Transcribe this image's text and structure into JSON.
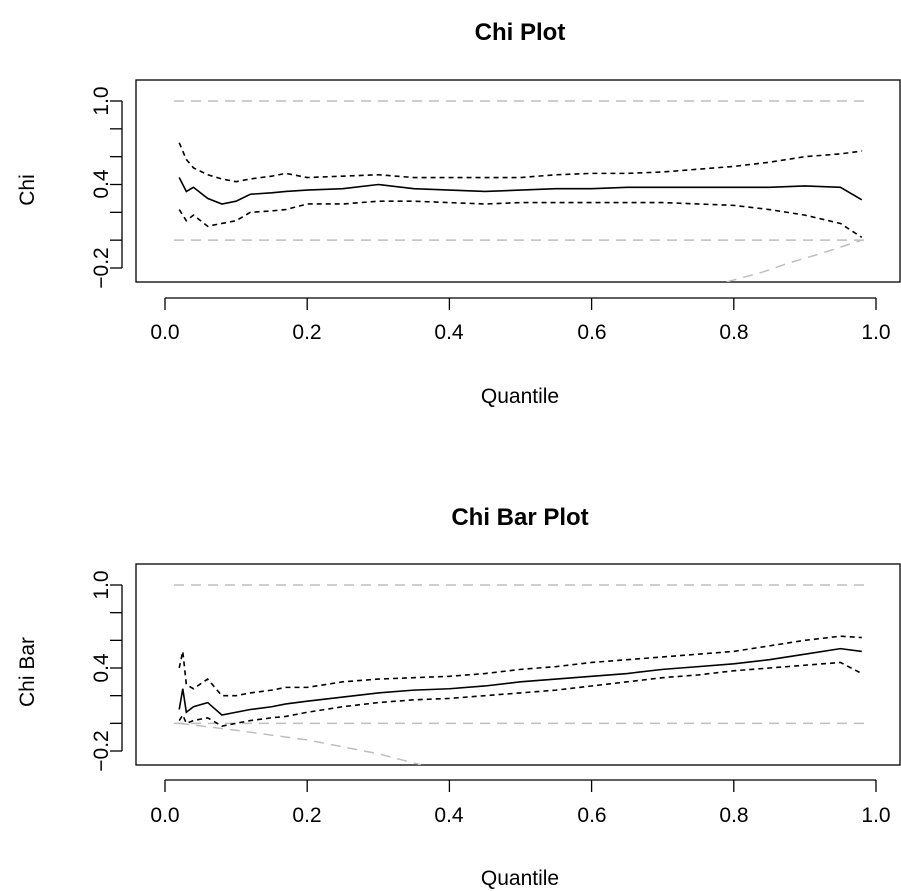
{
  "chart_data": [
    {
      "type": "line",
      "title": "Chi Plot",
      "xlabel": "Quantile",
      "ylabel": "Chi",
      "xlim": [
        0.0,
        1.0
      ],
      "ylim": [
        -0.2,
        1.0
      ],
      "x_ticks": [
        0.0,
        0.2,
        0.4,
        0.6,
        0.8,
        1.0
      ],
      "x_tick_labels": [
        "0.0",
        "0.2",
        "0.4",
        "0.6",
        "0.8",
        "1.0"
      ],
      "y_ticks": [
        -0.2,
        0.4,
        1.0
      ],
      "y_tick_labels": [
        "−0.2",
        "0.4",
        "1.0"
      ],
      "y_minor_ticks": [
        -0.2,
        0.0,
        0.2,
        0.4,
        0.6,
        0.8,
        1.0
      ],
      "grid": false,
      "legend": "none",
      "colors": {
        "estimate": "#000000",
        "bounds": "#000000",
        "reference": "#bebebe"
      },
      "x": [
        0.02,
        0.03,
        0.04,
        0.06,
        0.08,
        0.1,
        0.12,
        0.15,
        0.17,
        0.2,
        0.25,
        0.3,
        0.35,
        0.4,
        0.45,
        0.5,
        0.55,
        0.6,
        0.65,
        0.7,
        0.75,
        0.8,
        0.85,
        0.9,
        0.95,
        0.98
      ],
      "series": [
        {
          "role": "estimate",
          "style": "solid",
          "values": [
            0.45,
            0.35,
            0.38,
            0.3,
            0.26,
            0.28,
            0.33,
            0.34,
            0.35,
            0.36,
            0.37,
            0.4,
            0.37,
            0.36,
            0.35,
            0.36,
            0.37,
            0.37,
            0.38,
            0.38,
            0.38,
            0.38,
            0.38,
            0.39,
            0.38,
            0.29
          ]
        },
        {
          "role": "upper",
          "style": "dashed",
          "values": [
            0.7,
            0.58,
            0.52,
            0.47,
            0.44,
            0.42,
            0.44,
            0.46,
            0.48,
            0.45,
            0.46,
            0.47,
            0.45,
            0.45,
            0.45,
            0.45,
            0.47,
            0.48,
            0.48,
            0.49,
            0.51,
            0.53,
            0.56,
            0.6,
            0.62,
            0.64
          ]
        },
        {
          "role": "lower",
          "style": "dashed",
          "values": [
            0.22,
            0.14,
            0.18,
            0.1,
            0.12,
            0.14,
            0.2,
            0.21,
            0.22,
            0.26,
            0.26,
            0.28,
            0.28,
            0.27,
            0.26,
            0.27,
            0.27,
            0.27,
            0.27,
            0.27,
            0.26,
            0.25,
            0.22,
            0.18,
            0.12,
            0.02
          ]
        }
      ],
      "reference_lines": [
        {
          "type": "hline",
          "y": 1.0,
          "style": "dashed"
        },
        {
          "type": "hline",
          "y": 0.0,
          "style": "dashed"
        },
        {
          "type": "curve",
          "style": "dashed",
          "x": [
            0.79,
            0.84,
            0.88,
            0.92,
            0.95,
            0.98
          ],
          "y": [
            -0.3,
            -0.23,
            -0.16,
            -0.1,
            -0.05,
            0.0
          ]
        }
      ]
    },
    {
      "type": "line",
      "title": "Chi Bar Plot",
      "xlabel": "Quantile",
      "ylabel": "Chi Bar",
      "xlim": [
        0.0,
        1.0
      ],
      "ylim": [
        -0.2,
        1.0
      ],
      "x_ticks": [
        0.0,
        0.2,
        0.4,
        0.6,
        0.8,
        1.0
      ],
      "x_tick_labels": [
        "0.0",
        "0.2",
        "0.4",
        "0.6",
        "0.8",
        "1.0"
      ],
      "y_ticks": [
        -0.2,
        0.4,
        1.0
      ],
      "y_tick_labels": [
        "−0.2",
        "0.4",
        "1.0"
      ],
      "y_minor_ticks": [
        -0.2,
        0.0,
        0.2,
        0.4,
        0.6,
        0.8,
        1.0
      ],
      "grid": false,
      "legend": "none",
      "colors": {
        "estimate": "#000000",
        "bounds": "#000000",
        "reference": "#bebebe"
      },
      "x": [
        0.02,
        0.025,
        0.03,
        0.04,
        0.06,
        0.08,
        0.1,
        0.12,
        0.15,
        0.17,
        0.2,
        0.25,
        0.3,
        0.35,
        0.4,
        0.45,
        0.5,
        0.55,
        0.6,
        0.65,
        0.7,
        0.75,
        0.8,
        0.85,
        0.9,
        0.95,
        0.98
      ],
      "series": [
        {
          "role": "estimate",
          "style": "solid",
          "values": [
            0.1,
            0.25,
            0.08,
            0.12,
            0.15,
            0.06,
            0.08,
            0.1,
            0.12,
            0.14,
            0.16,
            0.19,
            0.22,
            0.24,
            0.25,
            0.27,
            0.3,
            0.32,
            0.34,
            0.36,
            0.39,
            0.41,
            0.43,
            0.46,
            0.5,
            0.54,
            0.52
          ]
        },
        {
          "role": "upper",
          "style": "dashed",
          "values": [
            0.4,
            0.52,
            0.28,
            0.25,
            0.32,
            0.2,
            0.2,
            0.22,
            0.24,
            0.26,
            0.26,
            0.3,
            0.32,
            0.33,
            0.34,
            0.36,
            0.39,
            0.41,
            0.44,
            0.46,
            0.48,
            0.5,
            0.52,
            0.56,
            0.6,
            0.63,
            0.62
          ]
        },
        {
          "role": "lower",
          "style": "dashed",
          "values": [
            0.02,
            0.06,
            0.0,
            0.02,
            0.04,
            -0.02,
            0.0,
            0.02,
            0.04,
            0.05,
            0.08,
            0.12,
            0.15,
            0.17,
            0.18,
            0.2,
            0.22,
            0.24,
            0.27,
            0.3,
            0.33,
            0.35,
            0.38,
            0.4,
            0.42,
            0.44,
            0.36
          ]
        }
      ],
      "reference_lines": [
        {
          "type": "hline",
          "y": 1.0,
          "style": "dashed"
        },
        {
          "type": "hline",
          "y": 0.0,
          "style": "dashed"
        },
        {
          "type": "curve",
          "style": "dashed",
          "x": [
            0.02,
            0.1,
            0.2,
            0.3,
            0.36
          ],
          "y": [
            0.0,
            -0.05,
            -0.12,
            -0.22,
            -0.3
          ]
        }
      ]
    }
  ]
}
